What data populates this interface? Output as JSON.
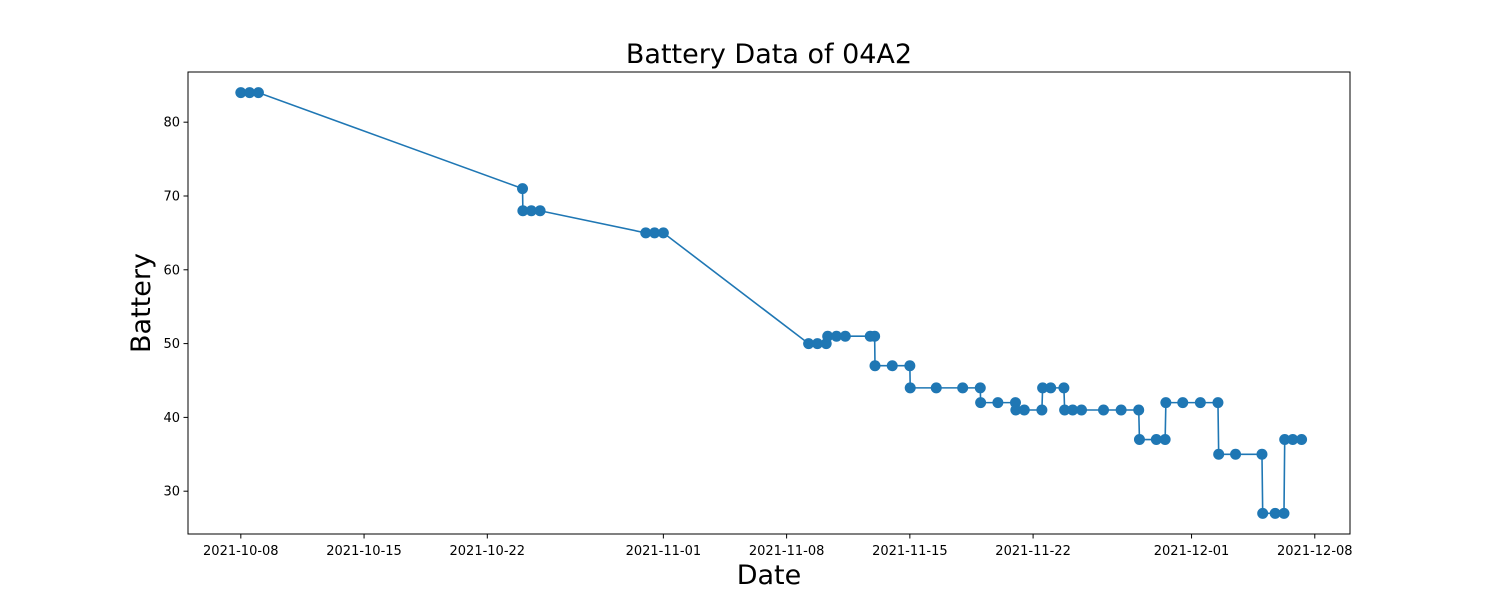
{
  "chart_data": {
    "type": "line",
    "title": "Battery Data of 04A2",
    "xlabel": "Date",
    "ylabel": "Battery",
    "x_scale": "date",
    "xlim": [
      "2021-10-05",
      "2021-12-10"
    ],
    "ylim": [
      24.2,
      86.8
    ],
    "grid": false,
    "x_ticks": [
      "2021-10-08",
      "2021-10-15",
      "2021-10-22",
      "2021-11-01",
      "2021-11-08",
      "2021-11-15",
      "2021-11-22",
      "2021-12-01",
      "2021-12-08"
    ],
    "y_ticks": [
      30,
      40,
      50,
      60,
      70,
      80
    ],
    "color": "#1f77b4",
    "series": [
      {
        "name": "",
        "points": [
          {
            "x": "2021-10-08 00:00",
            "y": 84
          },
          {
            "x": "2021-10-08 12:00",
            "y": 84
          },
          {
            "x": "2021-10-09 00:00",
            "y": 84
          },
          {
            "x": "2021-10-24 00:00",
            "y": 71
          },
          {
            "x": "2021-10-24 00:30",
            "y": 68
          },
          {
            "x": "2021-10-24 12:00",
            "y": 68
          },
          {
            "x": "2021-10-25 00:00",
            "y": 68
          },
          {
            "x": "2021-10-31 00:00",
            "y": 65
          },
          {
            "x": "2021-10-31 12:00",
            "y": 65
          },
          {
            "x": "2021-11-01 00:00",
            "y": 65
          },
          {
            "x": "2021-11-09 06:00",
            "y": 50
          },
          {
            "x": "2021-11-09 18:00",
            "y": 50
          },
          {
            "x": "2021-11-10 06:00",
            "y": 50
          },
          {
            "x": "2021-11-10 08:00",
            "y": 51
          },
          {
            "x": "2021-11-10 20:00",
            "y": 51
          },
          {
            "x": "2021-11-11 08:00",
            "y": 51
          },
          {
            "x": "2021-11-12 18:00",
            "y": 51
          },
          {
            "x": "2021-11-13 00:00",
            "y": 51
          },
          {
            "x": "2021-11-13 00:30",
            "y": 47
          },
          {
            "x": "2021-11-14 00:00",
            "y": 47
          },
          {
            "x": "2021-11-15 00:00",
            "y": 47
          },
          {
            "x": "2021-11-15 00:30",
            "y": 44
          },
          {
            "x": "2021-11-16 12:00",
            "y": 44
          },
          {
            "x": "2021-11-18 00:00",
            "y": 44
          },
          {
            "x": "2021-11-19 00:00",
            "y": 44
          },
          {
            "x": "2021-11-19 00:30",
            "y": 42
          },
          {
            "x": "2021-11-20 00:00",
            "y": 42
          },
          {
            "x": "2021-11-21 00:00",
            "y": 42
          },
          {
            "x": "2021-11-21 00:30",
            "y": 41
          },
          {
            "x": "2021-11-21 12:00",
            "y": 41
          },
          {
            "x": "2021-11-22 12:00",
            "y": 41
          },
          {
            "x": "2021-11-22 13:00",
            "y": 44
          },
          {
            "x": "2021-11-23 00:00",
            "y": 44
          },
          {
            "x": "2021-11-23 18:00",
            "y": 44
          },
          {
            "x": "2021-11-23 19:00",
            "y": 41
          },
          {
            "x": "2021-11-24 06:00",
            "y": 41
          },
          {
            "x": "2021-11-24 18:00",
            "y": 41
          },
          {
            "x": "2021-11-26 00:00",
            "y": 41
          },
          {
            "x": "2021-11-27 00:00",
            "y": 41
          },
          {
            "x": "2021-11-28 00:00",
            "y": 41
          },
          {
            "x": "2021-11-28 01:00",
            "y": 37
          },
          {
            "x": "2021-11-29 00:00",
            "y": 37
          },
          {
            "x": "2021-11-29 12:00",
            "y": 37
          },
          {
            "x": "2021-11-29 13:00",
            "y": 42
          },
          {
            "x": "2021-11-30 12:00",
            "y": 42
          },
          {
            "x": "2021-12-01 12:00",
            "y": 42
          },
          {
            "x": "2021-12-02 12:00",
            "y": 42
          },
          {
            "x": "2021-12-02 13:00",
            "y": 35
          },
          {
            "x": "2021-12-03 12:00",
            "y": 35
          },
          {
            "x": "2021-12-05 00:00",
            "y": 35
          },
          {
            "x": "2021-12-05 01:00",
            "y": 27
          },
          {
            "x": "2021-12-05 18:00",
            "y": 27
          },
          {
            "x": "2021-12-06 06:00",
            "y": 27
          },
          {
            "x": "2021-12-06 07:00",
            "y": 37
          },
          {
            "x": "2021-12-06 18:00",
            "y": 37
          },
          {
            "x": "2021-12-07 06:00",
            "y": 37
          }
        ]
      }
    ]
  }
}
